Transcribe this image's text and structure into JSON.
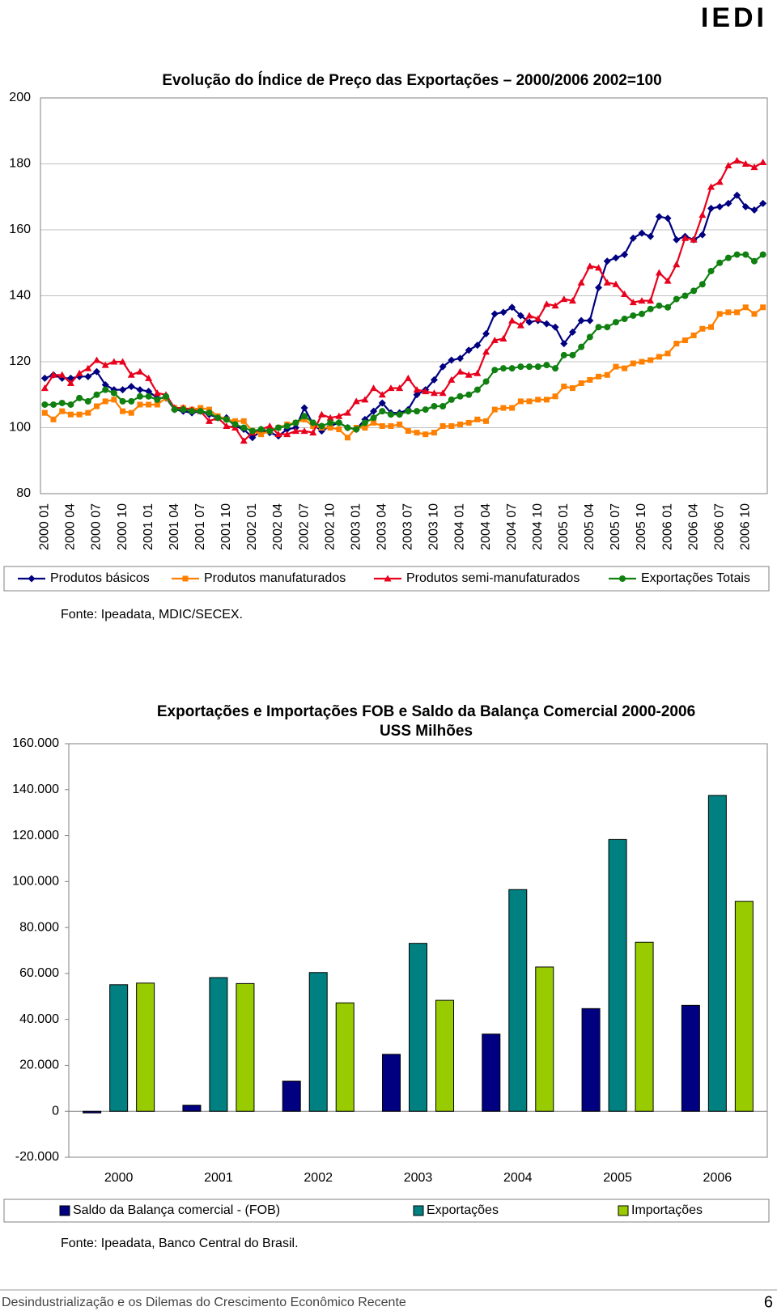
{
  "header": {
    "logo": "IEDI"
  },
  "chart_data": [
    {
      "type": "line",
      "title": "Evolução do Índice de Preço das Exportações – 2000/2006 2002=100",
      "categories": [
        "2000 01",
        null,
        null,
        "2000 04",
        null,
        null,
        "2000 07",
        null,
        null,
        "2000 10",
        null,
        null,
        "2001 01",
        null,
        null,
        "2001 04",
        null,
        null,
        "2001 07",
        null,
        null,
        "2001 10",
        null,
        null,
        "2002 01",
        null,
        null,
        "2002 04",
        null,
        null,
        "2002 07",
        null,
        null,
        "2002 10",
        null,
        null,
        "2003 01",
        null,
        null,
        "2003 04",
        null,
        null,
        "2003 07",
        null,
        null,
        "2003 10",
        null,
        null,
        "2004 01",
        null,
        null,
        "2004 04",
        null,
        null,
        "2004 07",
        null,
        null,
        "2004 10",
        null,
        null,
        "2005 01",
        null,
        null,
        "2005 04",
        null,
        null,
        "2005 07",
        null,
        null,
        "2005 10",
        null,
        null,
        "2006 01",
        null,
        null,
        "2006 04",
        null,
        null,
        "2006 07",
        null,
        null,
        "2006 10",
        null,
        null
      ],
      "series": [
        {
          "name": "Produtos básicos",
          "color": "#000080",
          "marker": "diamond",
          "values": [
            115,
            116,
            115,
            115,
            115.5,
            115.5,
            117,
            113,
            111.5,
            111.5,
            112.5,
            111.5,
            111,
            109,
            109,
            105.5,
            105,
            104.5,
            105,
            104,
            103,
            103,
            100.5,
            99.5,
            97,
            99,
            98.5,
            97.5,
            99.5,
            100,
            106,
            101,
            99,
            100.5,
            101.5,
            100,
            99.5,
            102.5,
            105,
            107.5,
            104.5,
            104.5,
            105.5,
            110,
            111.5,
            114.5,
            118.5,
            120.5,
            121,
            123.5,
            125,
            128.5,
            134.5,
            135,
            136.5,
            134,
            132,
            132.5,
            131.5,
            130.5,
            125.5,
            129,
            132.5,
            132.5,
            142.5,
            150.5,
            151.5,
            152.5,
            157.5,
            159,
            158,
            164,
            163.5,
            157,
            158,
            157,
            158.5,
            166.5,
            167,
            168,
            170.5,
            167,
            166,
            168
          ]
        },
        {
          "name": "Produtos manufaturados",
          "color": "#ff8000",
          "marker": "square",
          "values": [
            104.5,
            102.5,
            105,
            104,
            104,
            104.5,
            106.5,
            108,
            108.5,
            105,
            104.5,
            107,
            107,
            107,
            109,
            106,
            106,
            105.5,
            106,
            105.5,
            103.5,
            102.5,
            102,
            102,
            99,
            98,
            99,
            100,
            101,
            101.5,
            102.5,
            100.5,
            100,
            100,
            99.5,
            97,
            100,
            100,
            101.5,
            100.5,
            100.5,
            101,
            99,
            98.5,
            98,
            98.5,
            100.5,
            100.5,
            101,
            101.5,
            102.5,
            102,
            105.5,
            106,
            106,
            108,
            108,
            108.5,
            108.5,
            109.5,
            112.5,
            112,
            113.5,
            114.5,
            115.5,
            116,
            118.5,
            118,
            119.5,
            120,
            120.5,
            121.5,
            122.5,
            125.5,
            126.5,
            128,
            130,
            130.5,
            134.5,
            135,
            135,
            136.5,
            134.5,
            136.5
          ]
        },
        {
          "name": "Produtos semi-manufaturados",
          "color": "#e8001c",
          "marker": "triangle",
          "values": [
            112,
            116,
            116,
            113.5,
            116.5,
            118,
            120.5,
            119,
            120,
            120,
            116,
            117,
            115,
            110.5,
            110,
            106,
            106,
            105.5,
            105,
            102,
            103,
            100.5,
            100,
            96,
            98.5,
            99.5,
            100.5,
            98,
            98,
            99,
            99,
            98.5,
            104,
            103,
            103.5,
            104.5,
            108,
            108.5,
            112,
            110,
            112,
            112,
            115,
            111.5,
            111,
            110.5,
            110.5,
            114.5,
            117,
            116,
            116.5,
            123,
            126.5,
            127,
            132.5,
            131,
            134,
            133,
            137.5,
            137,
            139,
            138.5,
            144,
            149,
            148.5,
            144,
            143.5,
            140.5,
            138,
            138.5,
            138.5,
            147,
            144.5,
            149.5,
            157.5,
            157,
            164.5,
            173,
            174.5,
            179.5,
            181,
            180,
            179,
            180.5
          ]
        },
        {
          "name": "Exportações Totais",
          "color": "#108010",
          "marker": "circle",
          "values": [
            107,
            107,
            107.5,
            107,
            109,
            108,
            110,
            111.5,
            110.5,
            108,
            108,
            109.5,
            109.5,
            108.5,
            109.5,
            105.5,
            105.5,
            105,
            105,
            104.5,
            103,
            102.5,
            101,
            100,
            99,
            99.5,
            99,
            100,
            100.5,
            101.5,
            103.5,
            101.5,
            100.5,
            101.5,
            101.5,
            100,
            99.5,
            101.5,
            103,
            105,
            104,
            104,
            105,
            105,
            105.5,
            106.5,
            106.5,
            108.5,
            109.5,
            110,
            111.5,
            114,
            117.5,
            118,
            118,
            118.5,
            118.5,
            118.5,
            119,
            118,
            122,
            122,
            124.5,
            127.5,
            130.5,
            130.5,
            132,
            133,
            134,
            134.5,
            136,
            137,
            136.5,
            139,
            140,
            141.5,
            143.5,
            147.5,
            150,
            151.5,
            152.5,
            152.5,
            150.5,
            152.5
          ]
        }
      ],
      "ylim": [
        80,
        200
      ],
      "yticks": [
        80,
        100,
        120,
        140,
        160,
        180,
        200
      ],
      "grid": true,
      "source": "Fonte: Ipeadata, MDIC/SECEX."
    },
    {
      "type": "bar",
      "title": "Exportações e Importações FOB e Saldo da Balança Comercial 2000-2006",
      "subtitle": "USS Milhões",
      "categories": [
        "2000",
        "2001",
        "2002",
        "2003",
        "2004",
        "2005",
        "2006"
      ],
      "series": [
        {
          "name": "Saldo da Balança comercial - (FOB)",
          "color": "#000080",
          "values": [
            -700,
            2650,
            13100,
            24800,
            33600,
            44700,
            46100
          ]
        },
        {
          "name": "Exportações",
          "color": "#008080",
          "values": [
            55100,
            58200,
            60400,
            73100,
            96500,
            118300,
            137500
          ]
        },
        {
          "name": "Importações",
          "color": "#99cc00",
          "values": [
            55800,
            55600,
            47200,
            48300,
            62800,
            73600,
            91400
          ]
        }
      ],
      "ylim": [
        -20000,
        160000
      ],
      "yticks": [
        {
          "value": -20000,
          "label": "-20.000"
        },
        0,
        {
          "value": 20000,
          "label": "20.000"
        },
        {
          "value": 40000,
          "label": "40.000"
        },
        {
          "value": 60000,
          "label": "60.000"
        },
        {
          "value": 80000,
          "label": "80.000"
        },
        {
          "value": 100000,
          "label": "100.000"
        },
        {
          "value": 120000,
          "label": "120.000"
        },
        {
          "value": 140000,
          "label": "140.000"
        },
        {
          "value": 160000,
          "label": "160.000"
        }
      ],
      "grid": false,
      "source": "Fonte: Ipeadata, Banco Central do Brasil."
    }
  ],
  "footer": {
    "text": "Desindustrialização e os Dilemas do Crescimento Econômico Recente",
    "page": 6
  }
}
